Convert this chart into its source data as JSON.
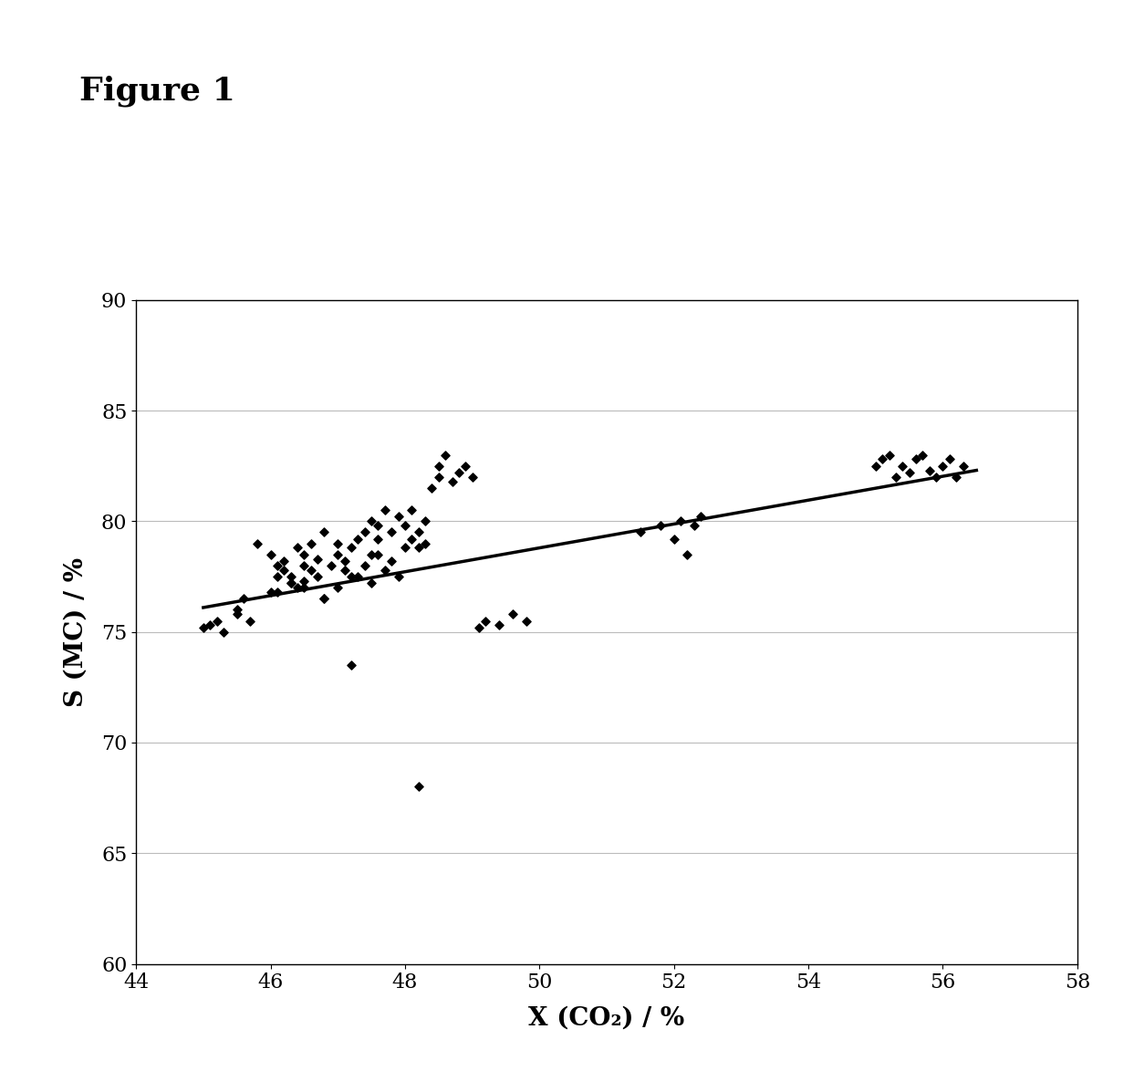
{
  "title": "Figure 1",
  "xlabel": "X (CO₂) / %",
  "ylabel": "S (MC) / %",
  "xlim": [
    44,
    58
  ],
  "ylim": [
    60,
    90
  ],
  "xticks": [
    44,
    46,
    48,
    50,
    52,
    54,
    56,
    58
  ],
  "yticks": [
    60,
    65,
    70,
    75,
    80,
    85,
    90
  ],
  "scatter_color": "#000000",
  "line_color": "#000000",
  "background_color": "#ffffff",
  "trend_x": [
    45.0,
    56.5
  ],
  "trend_y": [
    76.1,
    82.3
  ],
  "scatter_x": [
    45.0,
    45.1,
    45.2,
    45.3,
    45.5,
    45.5,
    45.6,
    45.7,
    46.0,
    46.0,
    46.1,
    46.1,
    46.2,
    46.2,
    46.3,
    46.3,
    46.4,
    46.4,
    46.5,
    46.5,
    46.5,
    46.6,
    46.6,
    46.7,
    46.7,
    46.8,
    46.8,
    46.9,
    47.0,
    47.0,
    47.0,
    47.1,
    47.1,
    47.2,
    47.2,
    47.3,
    47.3,
    47.4,
    47.4,
    47.5,
    47.5,
    47.5,
    47.6,
    47.6,
    47.6,
    47.7,
    47.7,
    47.8,
    47.8,
    47.9,
    47.9,
    48.0,
    48.0,
    48.1,
    48.1,
    48.2,
    48.2,
    48.3,
    48.3,
    48.4,
    48.5,
    48.5,
    48.6,
    48.7,
    48.8,
    48.9,
    49.0,
    49.1,
    49.2,
    49.4,
    49.6,
    49.8,
    51.5,
    51.8,
    52.0,
    52.1,
    52.2,
    52.3,
    52.4,
    55.0,
    55.1,
    55.2,
    55.3,
    55.4,
    55.5,
    55.6,
    55.7,
    55.8,
    55.9,
    56.0,
    56.1,
    56.2,
    56.3,
    45.8,
    46.1,
    46.3,
    46.5,
    46.8,
    47.2,
    48.2
  ],
  "scatter_y": [
    75.2,
    75.3,
    75.5,
    75.0,
    75.8,
    76.0,
    76.5,
    75.5,
    78.5,
    76.8,
    78.0,
    77.5,
    77.8,
    78.2,
    77.2,
    77.5,
    78.8,
    77.0,
    78.0,
    77.3,
    78.5,
    77.8,
    79.0,
    78.3,
    77.5,
    79.5,
    76.5,
    78.0,
    77.0,
    78.5,
    79.0,
    77.8,
    78.2,
    77.5,
    78.8,
    77.5,
    79.2,
    78.0,
    79.5,
    77.2,
    78.5,
    80.0,
    79.8,
    78.5,
    79.2,
    77.8,
    80.5,
    78.2,
    79.5,
    77.5,
    80.2,
    78.8,
    79.8,
    79.2,
    80.5,
    78.8,
    79.5,
    79.0,
    80.0,
    81.5,
    82.0,
    82.5,
    83.0,
    81.8,
    82.2,
    82.5,
    82.0,
    75.2,
    75.5,
    75.3,
    75.8,
    75.5,
    79.5,
    79.8,
    79.2,
    80.0,
    78.5,
    79.8,
    80.2,
    82.5,
    82.8,
    83.0,
    82.0,
    82.5,
    82.2,
    82.8,
    83.0,
    82.3,
    82.0,
    82.5,
    82.8,
    82.0,
    82.5,
    79.0,
    76.8,
    77.2,
    77.0,
    76.5,
    73.5,
    68.0
  ]
}
